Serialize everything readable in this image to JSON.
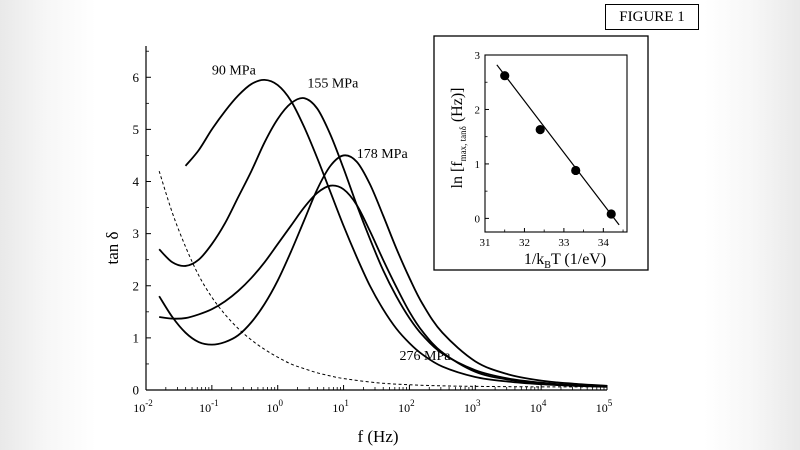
{
  "figure_label": "FIGURE 1",
  "chart_data": [
    {
      "type": "line",
      "xlabel": "f (Hz)",
      "ylabel": "tan δ",
      "xscale": "log",
      "xlim_exp": [
        -2,
        5
      ],
      "ylim": [
        0,
        6.6
      ],
      "x_ticks": [
        {
          "base": "10",
          "exp": "-2"
        },
        {
          "base": "10",
          "exp": "-1"
        },
        {
          "base": "10",
          "exp": "0"
        },
        {
          "base": "10",
          "exp": "1"
        },
        {
          "base": "10",
          "exp": "2"
        },
        {
          "base": "10",
          "exp": "3"
        },
        {
          "base": "10",
          "exp": "4"
        },
        {
          "base": "10",
          "exp": "5"
        }
      ],
      "y_ticks": [
        "0",
        "1",
        "2",
        "3",
        "4",
        "5",
        "6"
      ],
      "series": [
        {
          "name": "90 MPa",
          "style": "solid",
          "logf": [
            -1.4,
            -1.2,
            -1.0,
            -0.8,
            -0.6,
            -0.4,
            -0.2,
            0,
            0.2,
            0.4,
            0.6,
            0.8,
            1.0,
            1.2,
            1.4,
            1.6,
            1.8,
            2.0,
            2.2,
            2.5,
            3.0,
            3.5,
            4.0,
            4.5,
            5.0
          ],
          "tan": [
            4.3,
            4.6,
            5.0,
            5.35,
            5.65,
            5.87,
            5.95,
            5.85,
            5.55,
            5.05,
            4.45,
            3.8,
            3.15,
            2.55,
            2.0,
            1.55,
            1.18,
            0.9,
            0.68,
            0.45,
            0.25,
            0.16,
            0.11,
            0.08,
            0.06
          ]
        },
        {
          "name": "155 MPa",
          "style": "solid",
          "logf": [
            -1.8,
            -1.6,
            -1.4,
            -1.2,
            -1.0,
            -0.8,
            -0.6,
            -0.4,
            -0.2,
            0,
            0.2,
            0.4,
            0.6,
            0.8,
            1.0,
            1.2,
            1.4,
            1.6,
            1.8,
            2.0,
            2.2,
            2.5,
            3.0,
            3.5,
            4.0,
            4.5,
            5.0
          ],
          "tan": [
            2.7,
            2.45,
            2.38,
            2.5,
            2.8,
            3.2,
            3.7,
            4.2,
            4.75,
            5.2,
            5.5,
            5.6,
            5.4,
            4.9,
            4.25,
            3.55,
            2.9,
            2.3,
            1.8,
            1.38,
            1.05,
            0.7,
            0.38,
            0.22,
            0.14,
            0.09,
            0.07
          ]
        },
        {
          "name": "178 MPa",
          "style": "solid",
          "logf": [
            -1.8,
            -1.6,
            -1.4,
            -1.2,
            -1.0,
            -0.8,
            -0.6,
            -0.4,
            -0.2,
            0,
            0.2,
            0.4,
            0.6,
            0.8,
            1.0,
            1.2,
            1.4,
            1.6,
            1.8,
            2.0,
            2.2,
            2.5,
            3.0,
            3.5,
            4.0,
            4.5,
            5.0
          ],
          "tan": [
            1.8,
            1.4,
            1.1,
            0.92,
            0.87,
            0.92,
            1.05,
            1.3,
            1.65,
            2.1,
            2.65,
            3.25,
            3.85,
            4.3,
            4.5,
            4.38,
            3.95,
            3.35,
            2.72,
            2.15,
            1.65,
            1.1,
            0.55,
            0.3,
            0.18,
            0.12,
            0.08
          ]
        },
        {
          "name": "276 MPa",
          "style": "solid",
          "logf": [
            -1.8,
            -1.6,
            -1.4,
            -1.2,
            -1.0,
            -0.8,
            -0.6,
            -0.4,
            -0.2,
            0,
            0.2,
            0.4,
            0.6,
            0.8,
            1.0,
            1.2,
            1.4,
            1.6,
            1.8,
            2.0,
            2.2,
            2.5,
            3.0,
            3.5,
            4.0,
            4.5,
            5.0
          ],
          "tan": [
            1.4,
            1.37,
            1.38,
            1.45,
            1.55,
            1.7,
            1.9,
            2.15,
            2.45,
            2.8,
            3.15,
            3.5,
            3.78,
            3.92,
            3.85,
            3.55,
            3.05,
            2.5,
            1.98,
            1.5,
            1.12,
            0.72,
            0.35,
            0.2,
            0.13,
            0.09,
            0.07
          ]
        },
        {
          "name": "",
          "style": "dashed",
          "logf": [
            -1.8,
            -1.6,
            -1.4,
            -1.2,
            -1.0,
            -0.8,
            -0.6,
            -0.4,
            -0.2,
            0,
            0.2,
            0.4,
            0.6,
            0.8,
            1.0,
            1.5,
            2.0,
            2.5,
            3.0,
            4.0,
            5.0
          ],
          "tan": [
            4.2,
            3.4,
            2.75,
            2.2,
            1.78,
            1.45,
            1.18,
            0.96,
            0.78,
            0.63,
            0.5,
            0.41,
            0.33,
            0.27,
            0.22,
            0.14,
            0.1,
            0.08,
            0.07,
            0.06,
            0.06
          ]
        }
      ],
      "annotations": [
        {
          "text": "90 MPa",
          "x_log": -1.0,
          "y": 6.05
        },
        {
          "text": "155 MPa",
          "x_log": 0.45,
          "y": 5.8
        },
        {
          "text": "178 MPa",
          "x_log": 1.2,
          "y": 4.45
        },
        {
          "text": "276 MPa",
          "x_log": 1.85,
          "y": 0.58
        }
      ]
    },
    {
      "type": "scatter",
      "xlabel": "1/k_B T (1/eV)",
      "ylabel": "ln [f_max, tanδ (Hz)]",
      "xlim": [
        31,
        34.6
      ],
      "ylim": [
        -0.25,
        3.0
      ],
      "x_ticks": [
        "31",
        "32",
        "33",
        "34"
      ],
      "y_ticks": [
        "0",
        "1",
        "2",
        "3"
      ],
      "points": [
        {
          "x": 31.5,
          "y": 2.62
        },
        {
          "x": 32.4,
          "y": 1.63
        },
        {
          "x": 33.3,
          "y": 0.88
        },
        {
          "x": 34.2,
          "y": 0.08
        }
      ],
      "fit_line": {
        "x": [
          31.3,
          34.4
        ],
        "y": [
          2.82,
          -0.12
        ]
      }
    }
  ]
}
